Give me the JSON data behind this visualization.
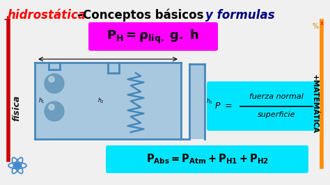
{
  "bg_color": "#f0f0f0",
  "title_red": "hidrostática",
  "title_black": " –Conceptos básicos ",
  "title_italic": "y formulas",
  "magenta_box_color": "#ff00ff",
  "cyan_box_color": "#00e5ff",
  "title_red_color": "#ff0000",
  "title_black_color": "#000000",
  "title_italic_color": "#000080",
  "diag_blue": "#4488bb",
  "diag_fill": "#a8c8e0",
  "left_bar_color": "#cc0000",
  "right_bar_color": "#ff8c00",
  "fisica_color": "#1a1a1a",
  "atom_color": "#4488cc",
  "fig_w": 4.74,
  "fig_h": 2.66,
  "dpi": 100
}
